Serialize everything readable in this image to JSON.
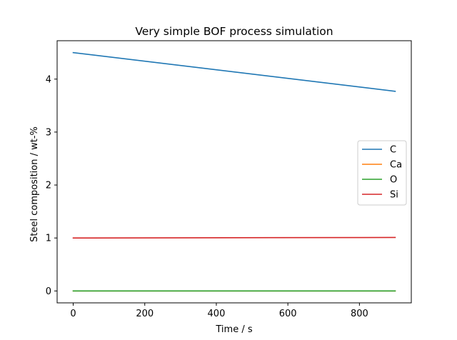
{
  "chart_data": {
    "type": "line",
    "title": "Very simple BOF process simulation",
    "xlabel": "Time / s",
    "ylabel": "Steel composition / wt-%",
    "xlim": [
      -45,
      945
    ],
    "ylim": [
      -0.225,
      4.725
    ],
    "xticks": [
      0,
      200,
      400,
      600,
      800
    ],
    "yticks": [
      0,
      1,
      2,
      3,
      4
    ],
    "grid": false,
    "legend_position": "center-right",
    "series": [
      {
        "name": "C",
        "color": "#1f77b4",
        "x": [
          0,
          900
        ],
        "y": [
          4.5,
          3.77
        ]
      },
      {
        "name": "Ca",
        "color": "#ff7f0e",
        "x": [
          0,
          900
        ],
        "y": [
          0.0,
          0.0
        ]
      },
      {
        "name": "O",
        "color": "#2ca02c",
        "x": [
          0,
          900
        ],
        "y": [
          0.0,
          0.0
        ]
      },
      {
        "name": "Si",
        "color": "#d62728",
        "x": [
          0,
          900
        ],
        "y": [
          1.0,
          1.01
        ]
      }
    ]
  }
}
